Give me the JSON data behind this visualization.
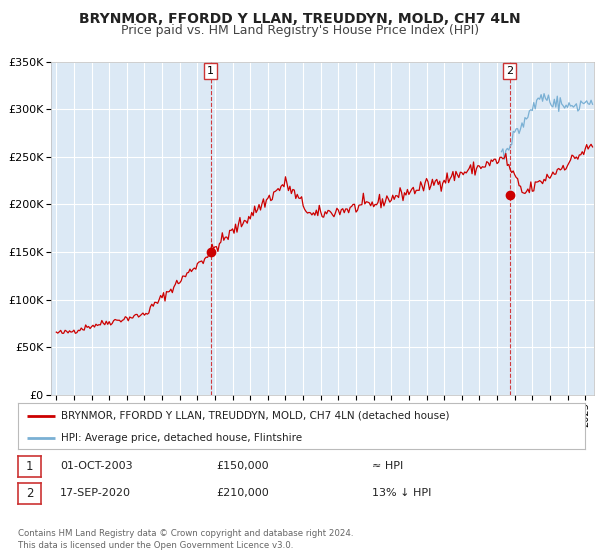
{
  "title": "BRYNMOR, FFORDD Y LLAN, TREUDDYN, MOLD, CH7 4LN",
  "subtitle": "Price paid vs. HM Land Registry's House Price Index (HPI)",
  "ylim": [
    0,
    350000
  ],
  "yticks": [
    0,
    50000,
    100000,
    150000,
    200000,
    250000,
    300000,
    350000
  ],
  "ytick_labels": [
    "£0",
    "£50K",
    "£100K",
    "£150K",
    "£200K",
    "£250K",
    "£300K",
    "£350K"
  ],
  "xlim_start": 1994.7,
  "xlim_end": 2025.5,
  "plot_bg_color": "#dce9f5",
  "grid_color": "#ffffff",
  "sale1_x": 2003.75,
  "sale1_y": 150000,
  "sale2_x": 2020.71,
  "sale2_y": 210000,
  "sale_marker_color": "#cc0000",
  "hpi_line_color": "#7ab0d4",
  "price_line_color": "#cc0000",
  "legend_label_price": "BRYNMOR, FFORDD Y LLAN, TREUDDYN, MOLD, CH7 4LN (detached house)",
  "legend_label_hpi": "HPI: Average price, detached house, Flintshire",
  "table_row1": [
    "1",
    "01-OCT-2003",
    "£150,000",
    "≈ HPI"
  ],
  "table_row2": [
    "2",
    "17-SEP-2020",
    "£210,000",
    "13% ↓ HPI"
  ],
  "footer": "Contains HM Land Registry data © Crown copyright and database right 2024.\nThis data is licensed under the Open Government Licence v3.0.",
  "title_fontsize": 10,
  "subtitle_fontsize": 9
}
